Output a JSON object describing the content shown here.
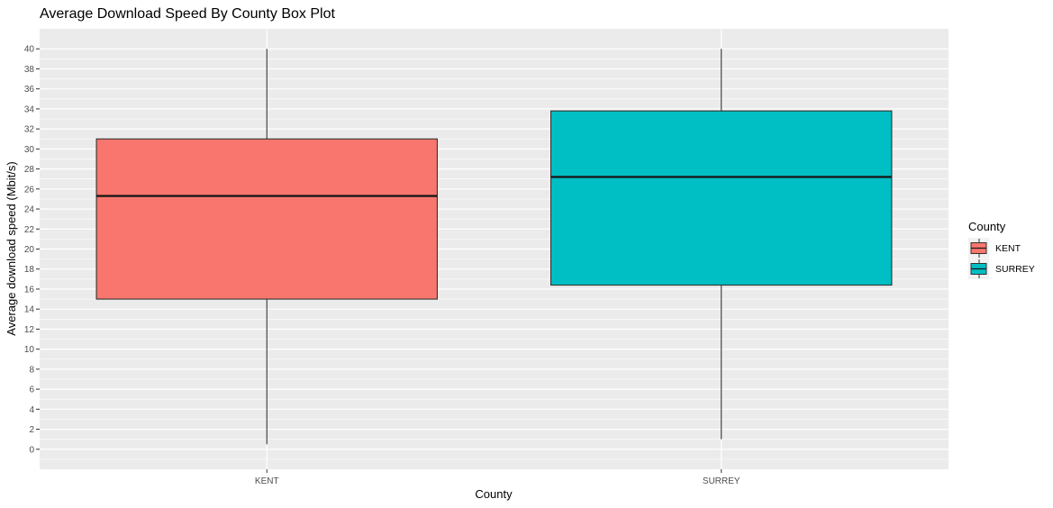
{
  "chart_data": {
    "type": "boxplot",
    "title": "Average Download Speed By County Box Plot",
    "xlabel": "County",
    "ylabel": "Average download speed (Mbit/s)",
    "categories": [
      "KENT",
      "SURREY"
    ],
    "ylim": [
      -2,
      42
    ],
    "yticks": [
      0,
      2,
      4,
      6,
      8,
      10,
      12,
      14,
      16,
      18,
      20,
      22,
      24,
      26,
      28,
      30,
      32,
      34,
      36,
      38,
      40
    ],
    "series": [
      {
        "name": "KENT",
        "min": 0.5,
        "q1": 15.0,
        "median": 25.3,
        "q3": 31.0,
        "max": 40.0,
        "color": "#F8766D"
      },
      {
        "name": "SURREY",
        "min": 1.0,
        "q1": 16.4,
        "median": 27.2,
        "q3": 33.8,
        "max": 40.0,
        "color": "#00BFC4"
      }
    ],
    "legend": {
      "title": "County",
      "position": "right"
    },
    "grid": true,
    "panel_background": "#EBEBEB",
    "grid_color": "#FFFFFF"
  }
}
